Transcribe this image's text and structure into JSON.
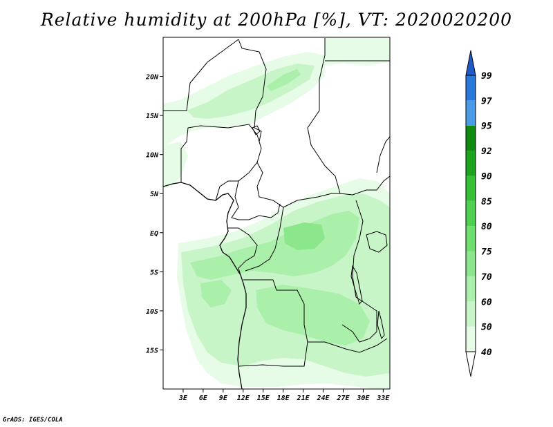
{
  "title": "Relative humidity at 200hPa [%], VT: 2020020200",
  "credit": "GrADS: IGES/COLA",
  "map": {
    "lon_range": [
      0,
      34
    ],
    "lat_range": [
      -20,
      25
    ],
    "lat_ticks": [
      {
        "value": 20,
        "label": "20N"
      },
      {
        "value": 15,
        "label": "15N"
      },
      {
        "value": 10,
        "label": "10N"
      },
      {
        "value": 5,
        "label": "5N"
      },
      {
        "value": 0,
        "label": "EQ"
      },
      {
        "value": -5,
        "label": "5S"
      },
      {
        "value": -10,
        "label": "10S"
      },
      {
        "value": -15,
        "label": "15S"
      }
    ],
    "lon_ticks": [
      {
        "value": 3,
        "label": "3E"
      },
      {
        "value": 6,
        "label": "6E"
      },
      {
        "value": 9,
        "label": "9E"
      },
      {
        "value": 12,
        "label": "12E"
      },
      {
        "value": 15,
        "label": "15E"
      },
      {
        "value": 18,
        "label": "18E"
      },
      {
        "value": 21,
        "label": "21E"
      },
      {
        "value": 24,
        "label": "24E"
      },
      {
        "value": 27,
        "label": "27E"
      },
      {
        "value": 30,
        "label": "30E"
      },
      {
        "value": 33,
        "label": "33E"
      }
    ]
  },
  "colorbar": {
    "levels": [
      {
        "label": "40",
        "color": "#e6fce6"
      },
      {
        "label": "50",
        "color": "#c8f5c8"
      },
      {
        "label": "60",
        "color": "#aaf0aa"
      },
      {
        "label": "70",
        "color": "#8ce68c"
      },
      {
        "label": "75",
        "color": "#6ede6e"
      },
      {
        "label": "80",
        "color": "#50d050"
      },
      {
        "label": "85",
        "color": "#36c036"
      },
      {
        "label": "90",
        "color": "#1ea51e"
      },
      {
        "label": "92",
        "color": "#118a11"
      },
      {
        "label": "95",
        "color": "#4b9be6"
      },
      {
        "label": "97",
        "color": "#2a78dc"
      },
      {
        "label": "99",
        "color": "#1e5ac8"
      }
    ],
    "below_color": "#ffffff",
    "above_color": "#1e5ac8"
  }
}
